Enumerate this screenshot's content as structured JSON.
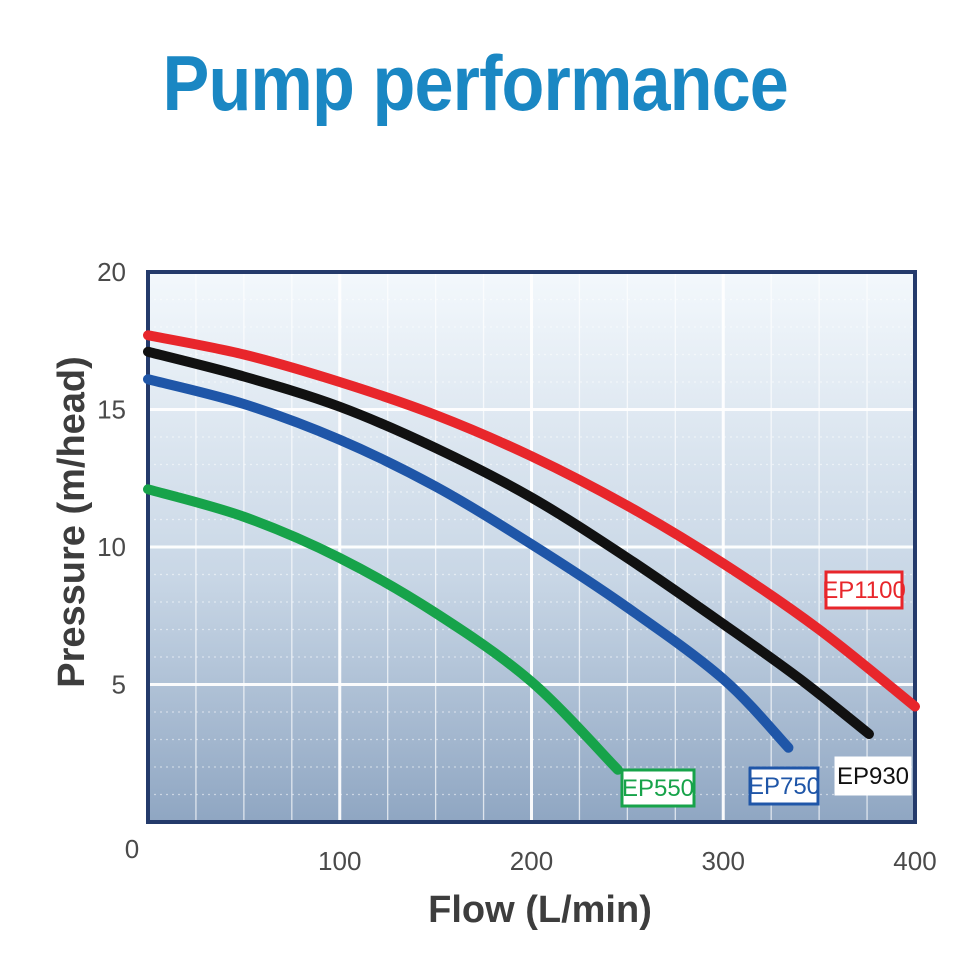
{
  "chart_data": {
    "type": "line",
    "title": "Pump performance",
    "xlabel": "Flow (L/min)",
    "ylabel": "Pressure (m/head)",
    "xlim": [
      0,
      400
    ],
    "ylim": [
      0,
      20
    ],
    "x_ticks": [
      "0",
      "100",
      "200",
      "300",
      "400"
    ],
    "y_ticks": [
      "5",
      "10",
      "15",
      "20"
    ],
    "grid": true,
    "series": [
      {
        "name": "EP1100",
        "color": "#e8262b",
        "points": [
          [
            0,
            17.7
          ],
          [
            50,
            17.0
          ],
          [
            100,
            16.0
          ],
          [
            150,
            14.8
          ],
          [
            200,
            13.3
          ],
          [
            250,
            11.5
          ],
          [
            300,
            9.4
          ],
          [
            350,
            7.0
          ],
          [
            400,
            4.2
          ]
        ]
      },
      {
        "name": "EP930",
        "color": "#111111",
        "points": [
          [
            0,
            17.1
          ],
          [
            50,
            16.2
          ],
          [
            100,
            15.1
          ],
          [
            150,
            13.6
          ],
          [
            200,
            11.8
          ],
          [
            250,
            9.6
          ],
          [
            300,
            7.2
          ],
          [
            340,
            5.2
          ],
          [
            376,
            3.2
          ]
        ]
      },
      {
        "name": "EP750",
        "color": "#1f56a8",
        "points": [
          [
            0,
            16.1
          ],
          [
            50,
            15.2
          ],
          [
            100,
            13.9
          ],
          [
            150,
            12.2
          ],
          [
            200,
            10.1
          ],
          [
            250,
            7.8
          ],
          [
            300,
            5.2
          ],
          [
            334,
            2.7
          ]
        ]
      },
      {
        "name": "EP550",
        "color": "#17a34a",
        "points": [
          [
            0,
            12.1
          ],
          [
            50,
            11.1
          ],
          [
            100,
            9.6
          ],
          [
            150,
            7.6
          ],
          [
            200,
            5.1
          ],
          [
            245,
            1.9
          ]
        ]
      }
    ]
  }
}
